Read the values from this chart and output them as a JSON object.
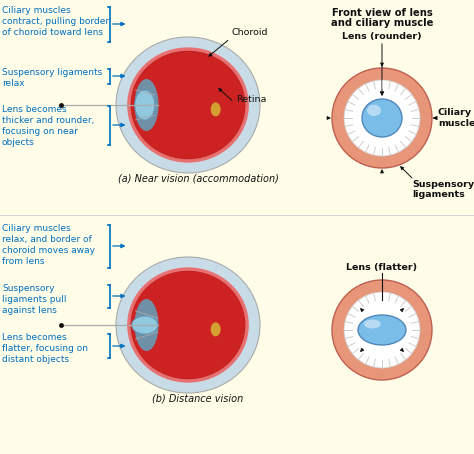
{
  "bg_color": "#fffce8",
  "eye_sclera": "#c8dce8",
  "eye_red": "#cc2222",
  "eye_outline": "#888888",
  "eye_nerve": "#d4a030",
  "eye_ciliary": "#7090a8",
  "eye_lens": "#90c8e0",
  "ciliary_ring": "#e8967a",
  "ciliary_inner": "#ffffff",
  "tick_color": "#bbbbbb",
  "lens_blue": "#7abde8",
  "black": "#111111",
  "blue": "#0070c0",
  "title1": "Front view of lens",
  "title2": "and ciliary muscle",
  "label_a": "(a) Near vision (accommodation)",
  "label_b": "(b) Distance vision",
  "notes_top": [
    "Ciliary muscles\ncontract, pulling border\nof choroid toward lens",
    "Suspensory ligaments\nrelax",
    "Lens becomes\nthicker and rounder,\nfocusing on near\nobjects"
  ],
  "notes_bot": [
    "Ciliary muscles\nrelax, and border of\nchoroid moves away\nfrom lens",
    "Suspensory\nligaments pull\nagainst lens",
    "Lens becomes\nflatter, focusing on\ndistant objects"
  ],
  "choroid_label": "Choroid",
  "retina_label": "Retina",
  "lens_rounder_label": "Lens (rounder)",
  "ciliary_muscle_label": "Ciliary\nmuscle",
  "suspensory_label": "Suspensory\nligaments",
  "lens_flatter_label": "Lens (flatter)"
}
